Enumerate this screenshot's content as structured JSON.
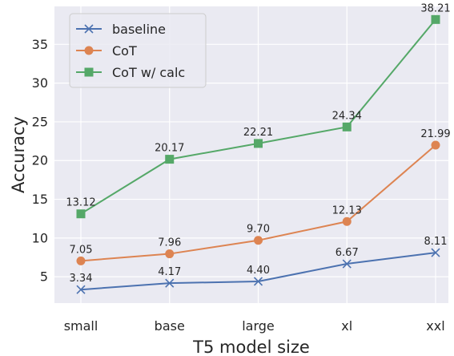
{
  "chart_data": {
    "type": "line",
    "categories": [
      "small",
      "base",
      "large",
      "xl",
      "xxl"
    ],
    "series": [
      {
        "name": "baseline",
        "values": [
          3.34,
          4.17,
          4.4,
          6.67,
          8.11
        ],
        "labels": [
          "3.34",
          "4.17",
          "4.40",
          "6.67",
          "8.11"
        ],
        "color": "#4c72b0",
        "marker": "x"
      },
      {
        "name": "CoT",
        "values": [
          7.05,
          7.96,
          9.7,
          12.13,
          21.99
        ],
        "labels": [
          "7.05",
          "7.96",
          "9.70",
          "12.13",
          "21.99"
        ],
        "color": "#dd8452",
        "marker": "circle"
      },
      {
        "name": "CoT w/ calc",
        "values": [
          13.12,
          20.17,
          22.21,
          24.34,
          38.21
        ],
        "labels": [
          "13.12",
          "20.17",
          "22.21",
          "24.34",
          "38.21"
        ],
        "color": "#55a868",
        "marker": "square"
      }
    ],
    "xlabel": "T5 model size",
    "ylabel": "Accuracy",
    "yticks": [
      5,
      10,
      15,
      20,
      25,
      30,
      35
    ],
    "ylim": [
      1.6,
      39.9
    ],
    "grid": true,
    "legend": "top-left",
    "background": "#eaeaf2",
    "grid_color": "#ffffff"
  }
}
